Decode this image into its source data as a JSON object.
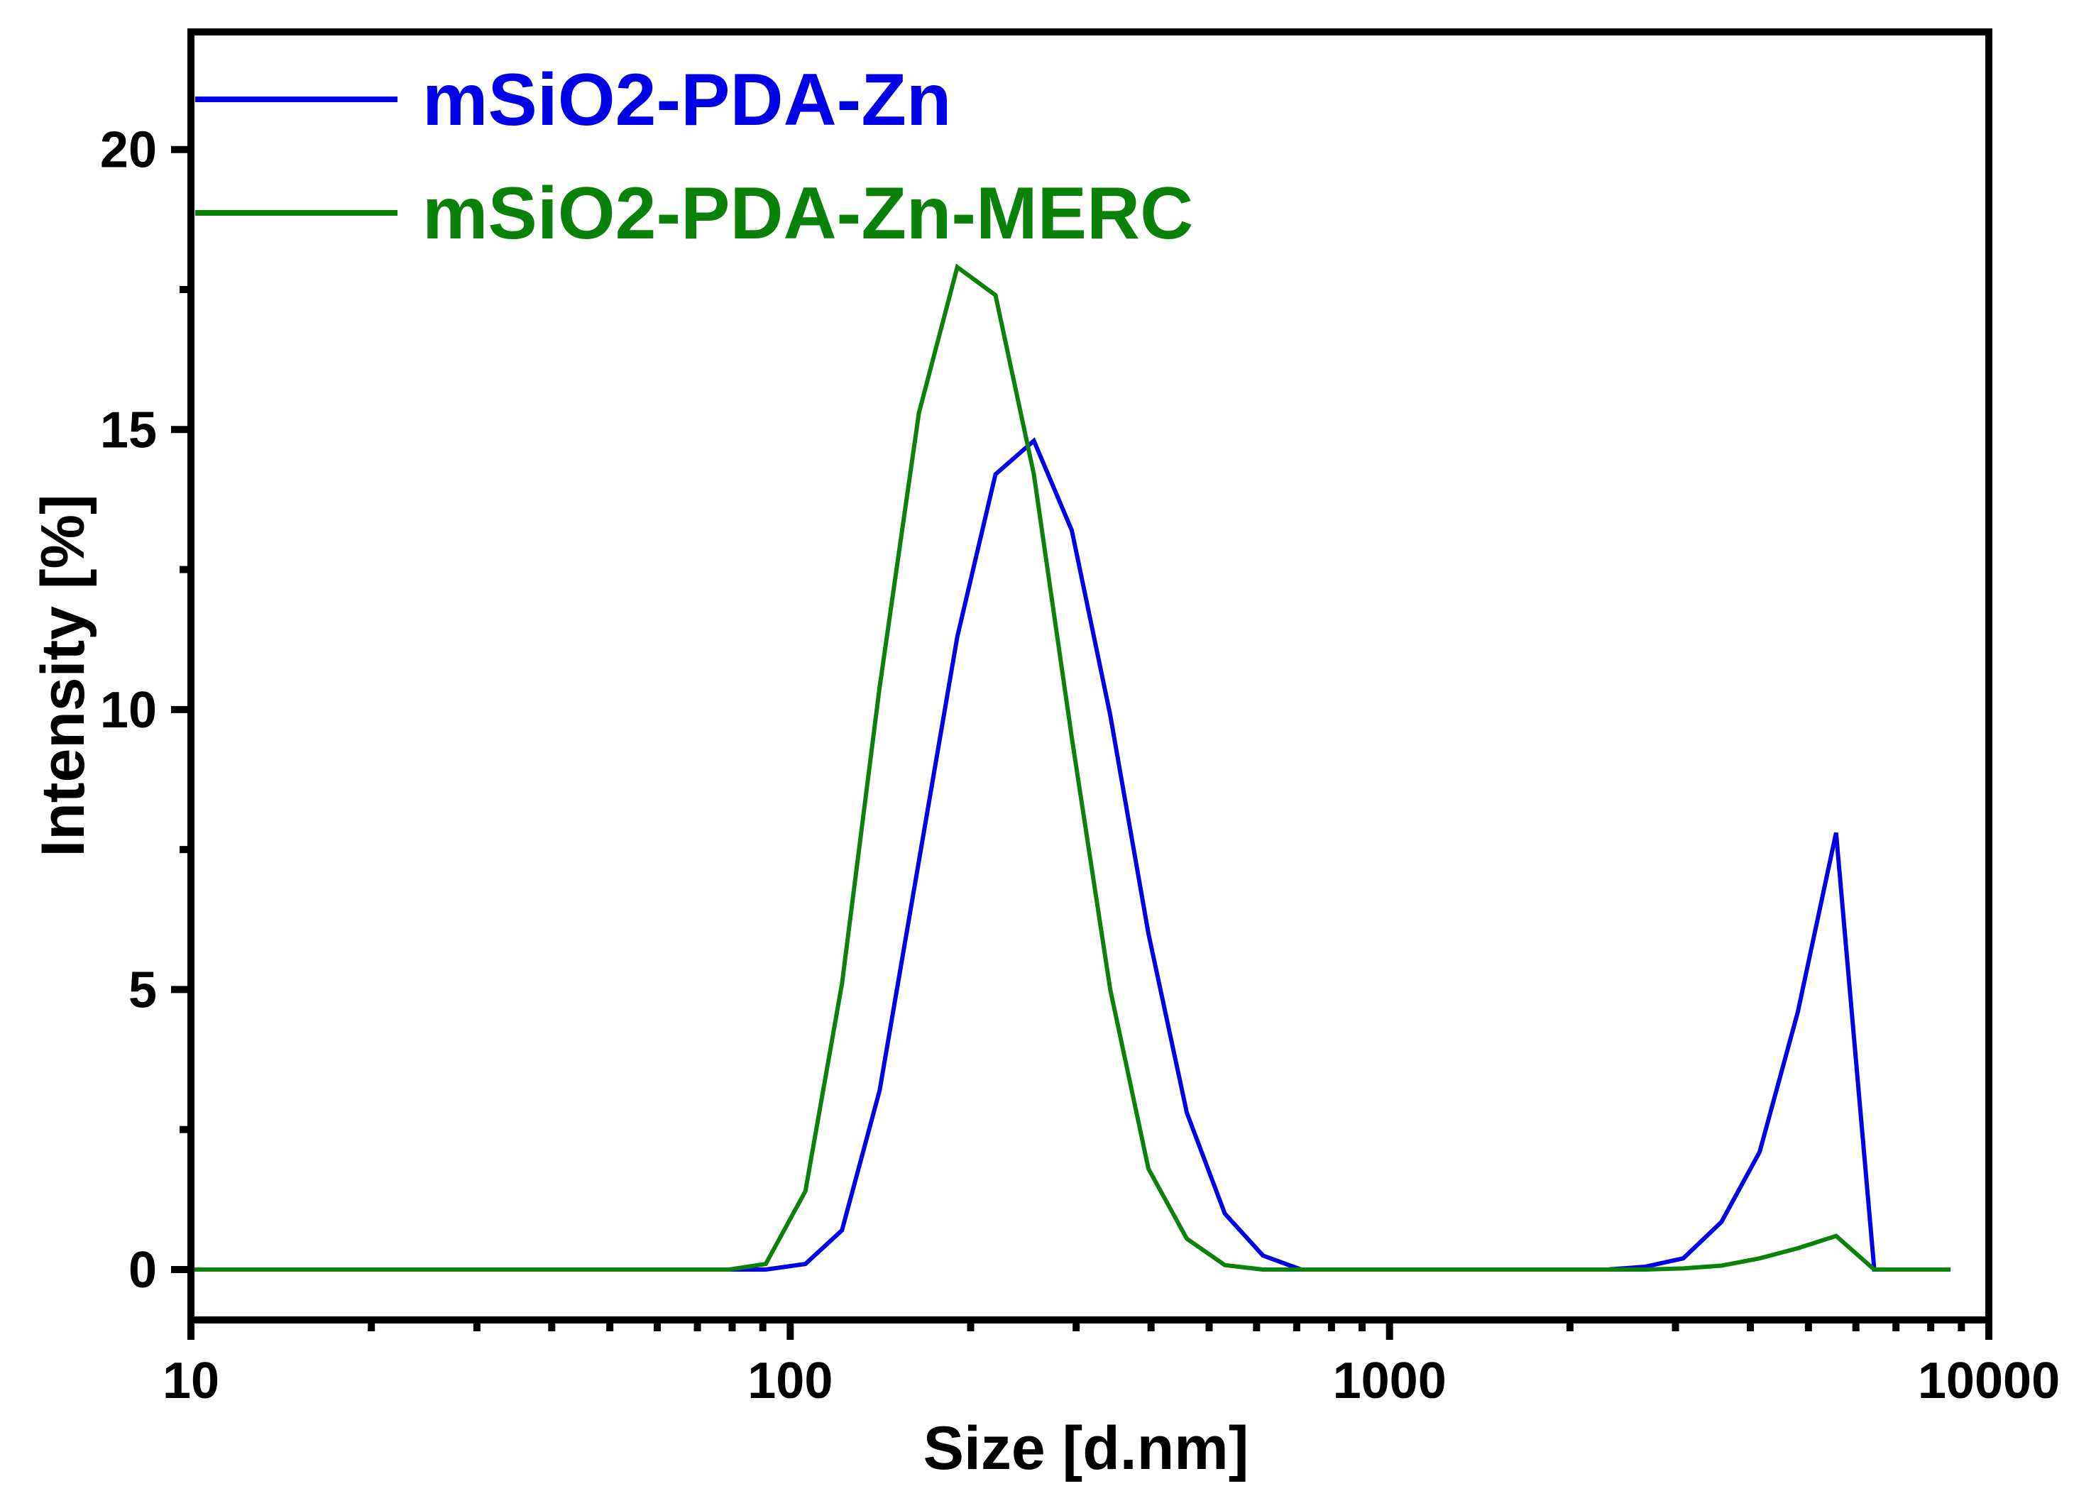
{
  "chart_data": {
    "type": "line",
    "title": "",
    "xlabel": "Size [d.nm]",
    "ylabel": "Intensity [%]",
    "xscale": "log",
    "xlim": [
      10,
      10000
    ],
    "ylim": [
      -0.9,
      22.1
    ],
    "x_ticks": [
      10,
      100,
      1000,
      10000
    ],
    "x_tick_labels": [
      "10",
      "100",
      "1000",
      "10000"
    ],
    "y_ticks": [
      0,
      5,
      10,
      15,
      20
    ],
    "y_tick_labels": [
      "0",
      "5",
      "10",
      "15",
      "20"
    ],
    "grid": false,
    "legend_position": "top-left",
    "series": [
      {
        "name": "mSiO2-PDA-Zn",
        "color": "#0000e6",
        "x": [
          10,
          79,
          91,
          106,
          122,
          141,
          164,
          190,
          220,
          255,
          295,
          342,
          396,
          459,
          531,
          615,
          712,
          825,
          955,
          1106,
          1281,
          1484,
          1718,
          1990,
          2305,
          2669,
          3091,
          3580,
          4145,
          4801,
          5560,
          6439,
          7456
        ],
        "values": [
          0,
          0,
          0,
          0.1,
          0.7,
          3.2,
          7.3,
          11.3,
          14.2,
          14.8,
          13.2,
          9.9,
          6.0,
          2.8,
          1.0,
          0.25,
          0,
          0,
          0,
          0,
          0,
          0,
          0,
          0,
          0,
          0.05,
          0.2,
          0.85,
          2.1,
          4.6,
          7.8,
          0,
          0
        ]
      },
      {
        "name": "mSiO2-PDA-Zn-MERC",
        "color": "#0a820a",
        "x": [
          10,
          79,
          91,
          106,
          122,
          141,
          164,
          190,
          220,
          255,
          295,
          342,
          396,
          459,
          531,
          615,
          712,
          825,
          955,
          1106,
          1281,
          1484,
          1718,
          1990,
          2305,
          2669,
          3091,
          3580,
          4145,
          4801,
          5560,
          6439,
          7456,
          8635
        ],
        "values": [
          0,
          0,
          0.1,
          1.4,
          5.1,
          10.4,
          15.3,
          17.9,
          17.4,
          14.2,
          9.5,
          5.0,
          1.8,
          0.55,
          0.08,
          0,
          0,
          0,
          0,
          0,
          0,
          0,
          0,
          0,
          0,
          0,
          0.02,
          0.07,
          0.2,
          0.38,
          0.6,
          0,
          0,
          0
        ]
      }
    ]
  }
}
